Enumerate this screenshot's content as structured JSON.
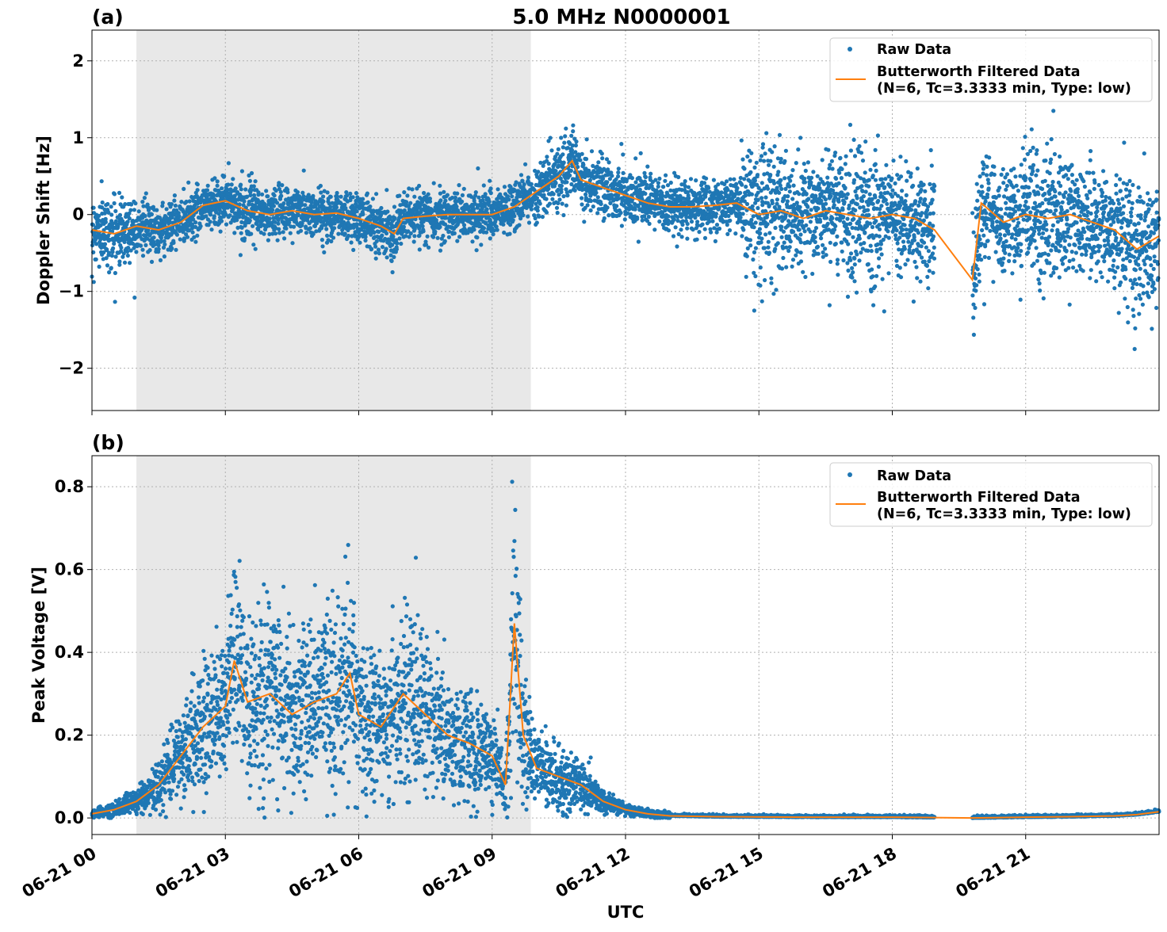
{
  "title": "5.0 MHz N0000001",
  "colors": {
    "raw": "#1f77b4",
    "filtered": "#ff7f0e",
    "shade": "#e8e8e8",
    "grid": "#b0b0b0"
  },
  "xlabel": "UTC",
  "chart_data": [
    {
      "type": "scatter",
      "panel_label": "(a)",
      "title": "5.0 MHz N0000001",
      "ylabel": "Doppler Shift [Hz]",
      "xlim_hours": [
        0,
        24
      ],
      "ylim": [
        -2.55,
        2.4
      ],
      "yticks": [
        -2,
        -1,
        0,
        1,
        2
      ],
      "ytick_labels": [
        "−2",
        "−1",
        "0",
        "1",
        "2"
      ],
      "xticks_hours": [
        0,
        3,
        6,
        9,
        12,
        15,
        18,
        21
      ],
      "xtick_labels": [
        "06-21 00",
        "06-21 03",
        "06-21 06",
        "06-21 09",
        "06-21 12",
        "06-21 15",
        "06-21 18",
        "06-21 21"
      ],
      "grid": true,
      "legend_position": "top-right",
      "shaded_span_hours": [
        1.0,
        9.87
      ],
      "data_gap_hours": [
        18.95,
        19.8
      ],
      "series": [
        {
          "name": "Raw Data",
          "kind": "points"
        },
        {
          "name": "Butterworth Filtered Data\n(N=6, Tc=3.3333 min, Type: low)",
          "kind": "line",
          "x_hours": [
            0,
            0.5,
            1.0,
            1.5,
            2.0,
            2.5,
            3.0,
            3.5,
            4.0,
            4.5,
            5.0,
            5.5,
            6.0,
            6.5,
            6.8,
            7.0,
            7.5,
            8.0,
            8.5,
            9.0,
            9.5,
            10.0,
            10.5,
            10.8,
            11.0,
            11.5,
            12.0,
            12.5,
            13.0,
            13.5,
            14.0,
            14.5,
            15.0,
            15.5,
            16.0,
            16.5,
            17.0,
            17.5,
            18.0,
            18.5,
            18.95,
            19.8,
            20.0,
            20.5,
            21.0,
            21.5,
            22.0,
            22.5,
            23.0,
            23.5,
            24.0
          ],
          "values": [
            -0.2,
            -0.25,
            -0.15,
            -0.2,
            -0.1,
            0.12,
            0.18,
            0.05,
            0.0,
            0.05,
            0.0,
            0.02,
            -0.05,
            -0.15,
            -0.25,
            -0.05,
            -0.02,
            0.0,
            0.0,
            0.0,
            0.1,
            0.3,
            0.5,
            0.7,
            0.45,
            0.35,
            0.25,
            0.15,
            0.1,
            0.1,
            0.12,
            0.15,
            0.0,
            0.05,
            -0.05,
            0.05,
            0.0,
            -0.05,
            0.0,
            -0.05,
            -0.2,
            -0.85,
            0.15,
            -0.1,
            0.0,
            -0.05,
            0.0,
            -0.1,
            -0.2,
            -0.45,
            -0.28
          ]
        }
      ]
    },
    {
      "type": "scatter",
      "panel_label": "(b)",
      "ylabel": "Peak Voltage [V]",
      "xlim_hours": [
        0,
        24
      ],
      "ylim": [
        -0.04,
        0.875
      ],
      "yticks": [
        0.0,
        0.2,
        0.4,
        0.6,
        0.8
      ],
      "ytick_labels": [
        "0.0",
        "0.2",
        "0.4",
        "0.6",
        "0.8"
      ],
      "xticks_hours": [
        0,
        3,
        6,
        9,
        12,
        15,
        18,
        21
      ],
      "xtick_labels": [
        "06-21 00",
        "06-21 03",
        "06-21 06",
        "06-21 09",
        "06-21 12",
        "06-21 15",
        "06-21 18",
        "06-21 21"
      ],
      "grid": true,
      "legend_position": "top-right",
      "shaded_span_hours": [
        1.0,
        9.87
      ],
      "data_gap_hours": [
        18.95,
        19.8
      ],
      "series": [
        {
          "name": "Raw Data",
          "kind": "points"
        },
        {
          "name": "Butterworth Filtered Data\n(N=6, Tc=3.3333 min, Type: low)",
          "kind": "line",
          "x_hours": [
            0,
            0.5,
            1.0,
            1.5,
            2.0,
            2.5,
            3.0,
            3.2,
            3.5,
            4.0,
            4.5,
            5.0,
            5.5,
            5.8,
            6.0,
            6.5,
            7.0,
            7.5,
            8.0,
            8.5,
            9.0,
            9.3,
            9.5,
            9.7,
            10.0,
            10.5,
            11.0,
            11.5,
            12.0,
            12.5,
            13.0,
            14.0,
            16.0,
            18.0,
            18.95,
            19.8,
            21.0,
            22.0,
            23.0,
            23.5,
            24.0
          ],
          "values": [
            0.01,
            0.02,
            0.04,
            0.08,
            0.15,
            0.22,
            0.27,
            0.38,
            0.28,
            0.3,
            0.25,
            0.28,
            0.3,
            0.35,
            0.25,
            0.22,
            0.3,
            0.25,
            0.2,
            0.18,
            0.15,
            0.08,
            0.47,
            0.2,
            0.12,
            0.1,
            0.08,
            0.04,
            0.02,
            0.01,
            0.005,
            0.003,
            0.002,
            0.002,
            0.001,
            0.0,
            0.002,
            0.003,
            0.005,
            0.008,
            0.015
          ]
        }
      ]
    }
  ]
}
